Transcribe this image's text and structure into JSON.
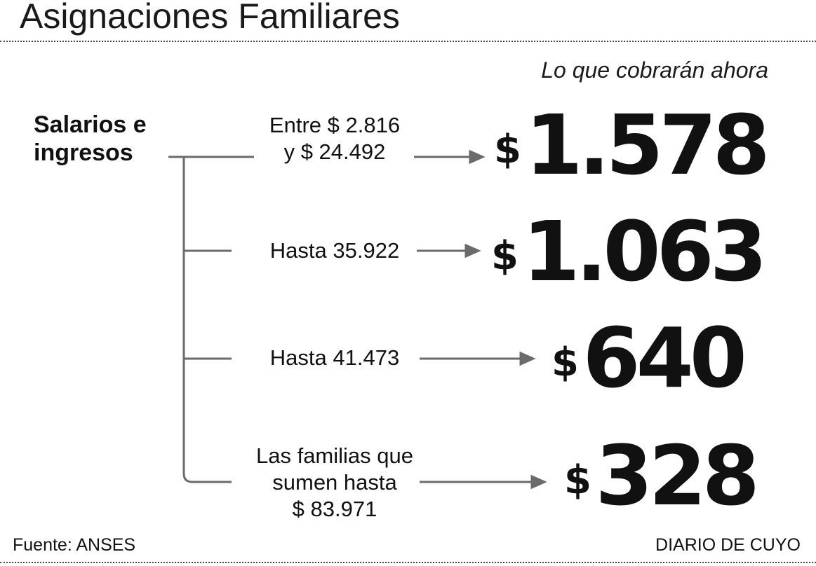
{
  "title": "Asignaciones Familiares",
  "subtitle": "Lo que cobrarán ahora",
  "root": {
    "line1": "Salarios e",
    "line2": "ingresos"
  },
  "currency_symbol": "$",
  "tiers": [
    {
      "lines": [
        "Entre $ 2.816",
        "y $ 24.492"
      ],
      "amount": "1.578"
    },
    {
      "lines": [
        "Hasta 35.922"
      ],
      "amount": "1.063"
    },
    {
      "lines": [
        "Hasta 41.473"
      ],
      "amount": "640"
    },
    {
      "lines": [
        "Las familias que",
        "sumen hasta",
        "$ 83.971"
      ],
      "amount": "328"
    }
  ],
  "footer": {
    "source": "Fuente: ANSES",
    "publisher": "DIARIO DE CUYO"
  },
  "colors": {
    "text": "#111111",
    "connector": "#6b6b6b",
    "background": "#ffffff"
  }
}
